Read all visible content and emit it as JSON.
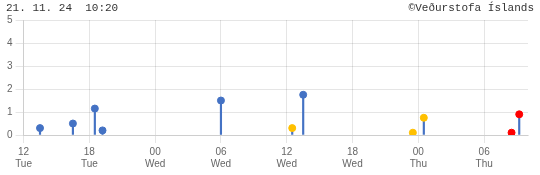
{
  "chart_data": {
    "type": "stem",
    "title": "21. 11. 24  10:20",
    "subtitle": "©Veðurstofa Íslands",
    "x": [
      1.5,
      4.5,
      6.5,
      7.2,
      18.0,
      24.5,
      25.5,
      35.5,
      36.5,
      44.5,
      45.2
    ],
    "values": [
      0.3,
      0.5,
      1.15,
      0.2,
      1.5,
      0.3,
      1.75,
      0.1,
      0.75,
      0.1,
      0.9
    ],
    "color": "#4472c4",
    "colors": [
      "#4472c4",
      "#4472c4",
      "#4472c4",
      "#4472c4",
      "#4472c4",
      "#ffc000",
      "#4472c4",
      "#ffc000",
      "#ffc000",
      "#ff0000",
      "#ff0000"
    ],
    "xlim": [
      0,
      46
    ],
    "xticks": [
      {
        "value": 0,
        "label": [
          "12",
          "Tue"
        ]
      },
      {
        "value": 6,
        "label": [
          "18",
          "Tue"
        ]
      },
      {
        "value": 12,
        "label": [
          "00",
          "Wed"
        ]
      },
      {
        "value": 18,
        "label": [
          "06",
          "Wed"
        ]
      },
      {
        "value": 24,
        "label": [
          "12",
          "Wed"
        ]
      },
      {
        "value": 30,
        "label": [
          "18",
          "Wed"
        ]
      },
      {
        "value": 36,
        "label": [
          "00",
          "Thu"
        ]
      },
      {
        "value": 42,
        "label": [
          "06",
          "Thu"
        ]
      }
    ],
    "ylim": [
      0,
      5
    ],
    "yticks": [
      0,
      1,
      2,
      3,
      4,
      5
    ],
    "grid": true
  }
}
